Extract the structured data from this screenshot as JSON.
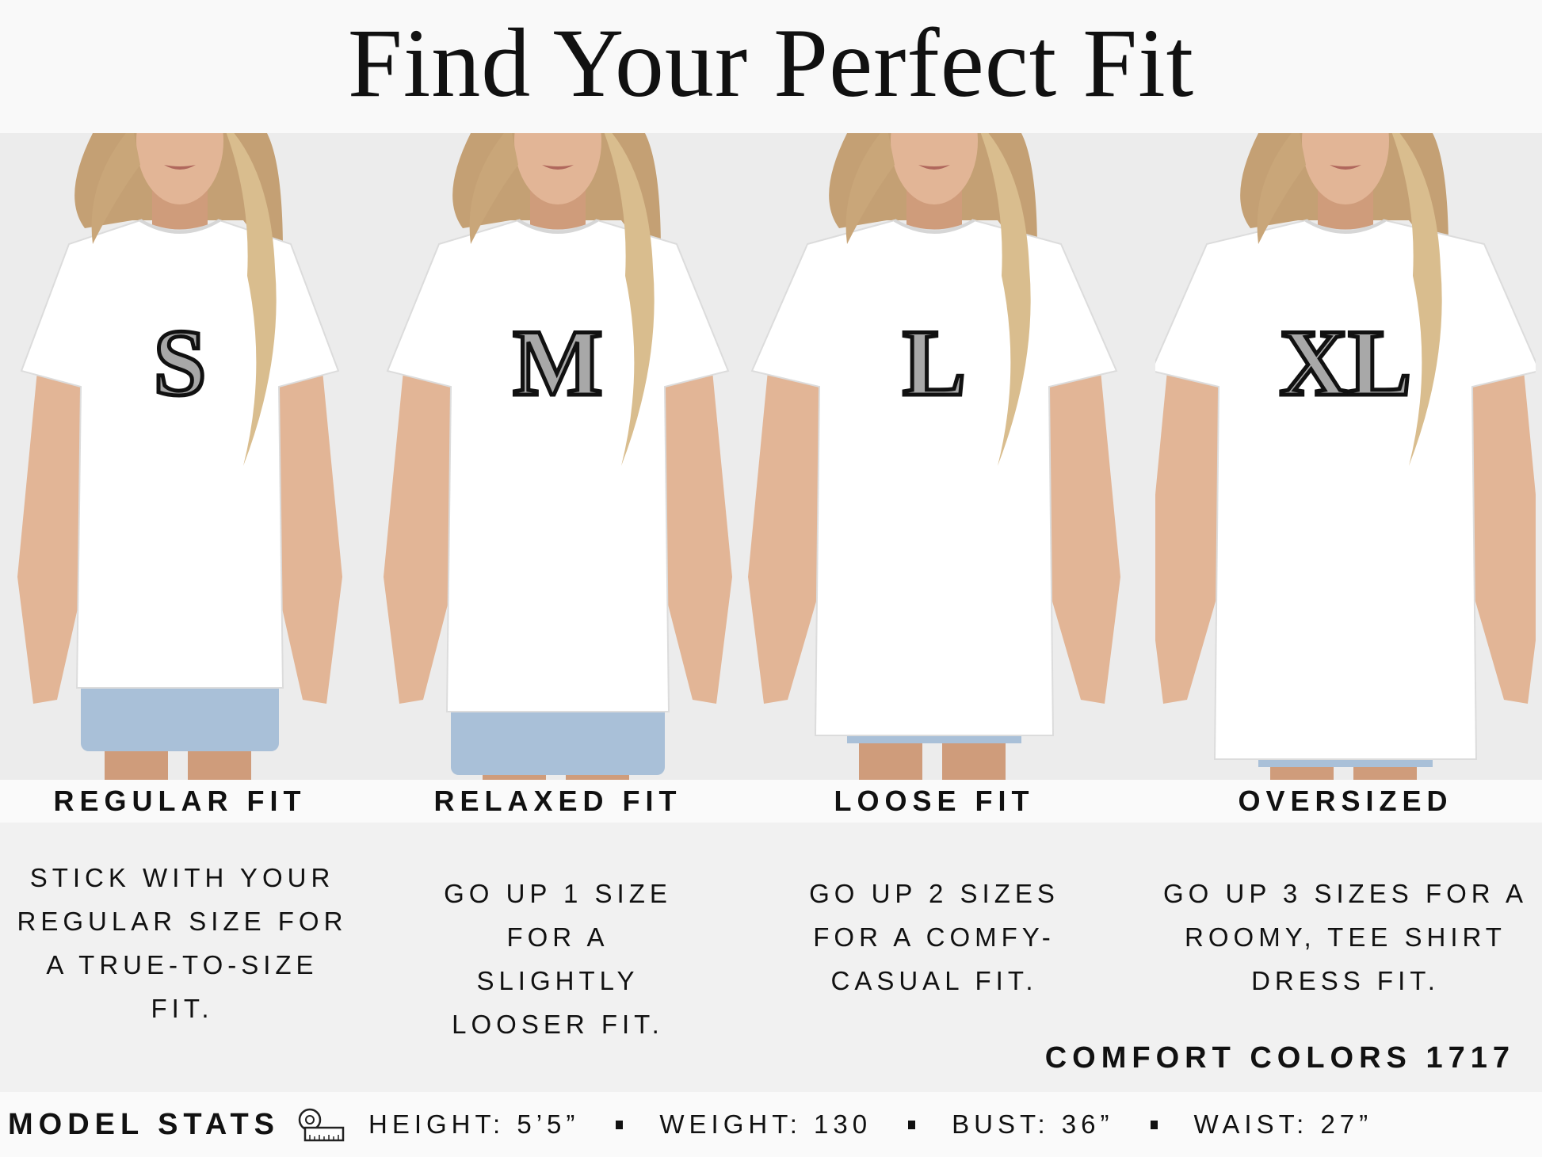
{
  "title": "Find Your Perfect Fit",
  "fits": [
    {
      "size": "S",
      "label": "REGULAR FIT",
      "description": "STICK WITH YOUR REGULAR SIZE FOR A TRUE-TO-SIZE FIT."
    },
    {
      "size": "M",
      "label": "RELAXED FIT",
      "description": "GO UP 1 SIZE FOR A SLIGHTLY LOOSER FIT."
    },
    {
      "size": "L",
      "label": "LOOSE FIT",
      "description": "GO UP 2 SIZES FOR A COMFY-CASUAL FIT."
    },
    {
      "size": "XL",
      "label": "OVERSIZED",
      "description": "GO UP 3 SIZES FOR A ROOMY, TEE SHIRT DRESS FIT."
    }
  ],
  "brand": "COMFORT COLORS 1717",
  "model_stats": {
    "title": "MODEL STATS",
    "icon": "measuring-tape-icon",
    "height": "HEIGHT: 5’5”",
    "weight": "WEIGHT: 130",
    "bust": "BUST: 36”",
    "waist": "WAIST: 27”"
  },
  "colors": {
    "letter_fill": "#a8a8a8",
    "letter_stroke": "#111111",
    "shirt": "#ffffff",
    "denim": "#a9c0d8"
  }
}
